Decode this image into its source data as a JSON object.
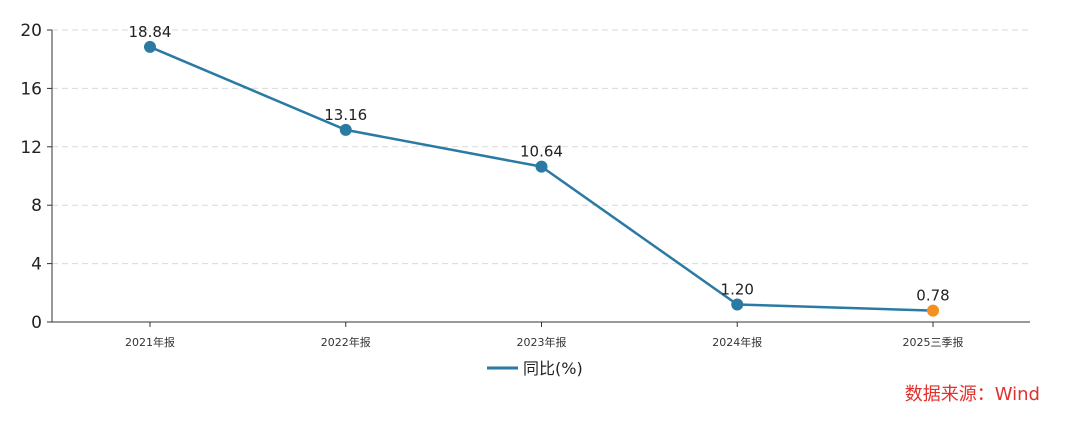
{
  "chart_data": {
    "type": "line",
    "categories": [
      "2021年报",
      "2022年报",
      "2023年报",
      "2024年报",
      "2025三季报"
    ],
    "series": [
      {
        "name": "同比(%)",
        "values": [
          18.84,
          13.16,
          10.64,
          1.2,
          0.78
        ],
        "labels": [
          "18.84",
          "13.16",
          "10.64",
          "1.20",
          "0.78"
        ]
      }
    ],
    "ylim": [
      0,
      20
    ],
    "yticks": [
      0,
      4,
      8,
      12,
      16,
      20
    ],
    "grid": true,
    "legend_position": "bottom-center",
    "colors": {
      "line": "#2a7aa3",
      "highlight_point": "#f39020",
      "grid": "#d9d9d9",
      "axis": "#333333"
    },
    "highlight_index": 4
  },
  "source": "数据来源：Wind"
}
